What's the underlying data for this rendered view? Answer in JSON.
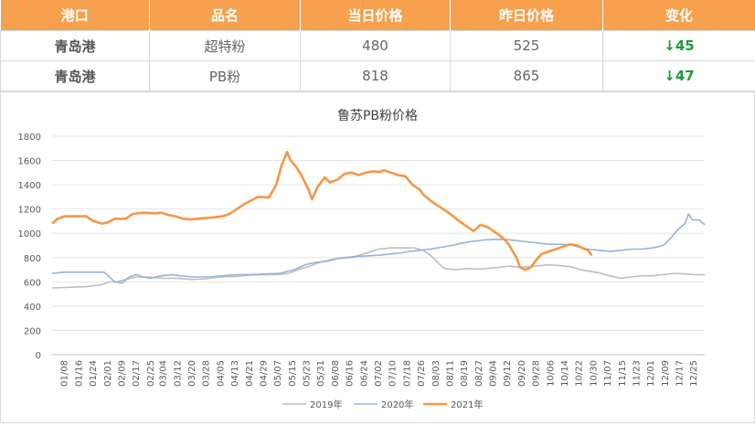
{
  "table": {
    "headers": [
      "港口",
      "品名",
      "当日价格",
      "昨日价格",
      "变化"
    ],
    "rows": [
      {
        "port": "青岛港",
        "product": "超特粉",
        "today": "480",
        "yesterday": "525",
        "change": "↓45"
      },
      {
        "port": "青岛港",
        "product": "PB粉",
        "today": "818",
        "yesterday": "865",
        "change": "↓47"
      }
    ]
  },
  "chart_data": {
    "type": "line",
    "title": "鲁苏PB粉价格",
    "ylim": [
      0,
      1800
    ],
    "yticks": [
      0,
      200,
      400,
      600,
      800,
      1000,
      1200,
      1400,
      1600,
      1800
    ],
    "xlim": [
      1,
      365
    ],
    "xticks": [
      {
        "label": "01/08",
        "x": 8
      },
      {
        "label": "01/16",
        "x": 16
      },
      {
        "label": "01/24",
        "x": 24
      },
      {
        "label": "02/01",
        "x": 32
      },
      {
        "label": "02/09",
        "x": 40
      },
      {
        "label": "02/17",
        "x": 48
      },
      {
        "label": "02/25",
        "x": 56
      },
      {
        "label": "03/04",
        "x": 63
      },
      {
        "label": "03/12",
        "x": 71
      },
      {
        "label": "03/20",
        "x": 79
      },
      {
        "label": "03/28",
        "x": 87
      },
      {
        "label": "04/05",
        "x": 95
      },
      {
        "label": "04/13",
        "x": 103
      },
      {
        "label": "04/21",
        "x": 111
      },
      {
        "label": "04/29",
        "x": 119
      },
      {
        "label": "05/07",
        "x": 127
      },
      {
        "label": "05/15",
        "x": 135
      },
      {
        "label": "05/23",
        "x": 143
      },
      {
        "label": "05/31",
        "x": 151
      },
      {
        "label": "06/08",
        "x": 159
      },
      {
        "label": "06/16",
        "x": 167
      },
      {
        "label": "06/24",
        "x": 175
      },
      {
        "label": "07/02",
        "x": 183
      },
      {
        "label": "07/10",
        "x": 191
      },
      {
        "label": "07/18",
        "x": 199
      },
      {
        "label": "07/26",
        "x": 207
      },
      {
        "label": "08/03",
        "x": 215
      },
      {
        "label": "08/11",
        "x": 223
      },
      {
        "label": "08/19",
        "x": 231
      },
      {
        "label": "08/27",
        "x": 239
      },
      {
        "label": "09/04",
        "x": 247
      },
      {
        "label": "09/12",
        "x": 255
      },
      {
        "label": "09/20",
        "x": 263
      },
      {
        "label": "09/28",
        "x": 271
      },
      {
        "label": "10/06",
        "x": 279
      },
      {
        "label": "10/14",
        "x": 287
      },
      {
        "label": "10/22",
        "x": 295
      },
      {
        "label": "10/30",
        "x": 303
      },
      {
        "label": "11/07",
        "x": 311
      },
      {
        "label": "11/15",
        "x": 319
      },
      {
        "label": "11/23",
        "x": 327
      },
      {
        "label": "12/01",
        "x": 335
      },
      {
        "label": "12/09",
        "x": 343
      },
      {
        "label": "12/17",
        "x": 351
      },
      {
        "label": "12/25",
        "x": 359
      }
    ],
    "series": [
      {
        "name": "2019年",
        "color": "#bfbfbf",
        "points": [
          [
            1,
            550
          ],
          [
            10,
            555
          ],
          [
            20,
            560
          ],
          [
            28,
            575
          ],
          [
            33,
            600
          ],
          [
            37,
            600
          ],
          [
            42,
            620
          ],
          [
            48,
            640
          ],
          [
            55,
            640
          ],
          [
            63,
            630
          ],
          [
            71,
            630
          ],
          [
            79,
            620
          ],
          [
            87,
            625
          ],
          [
            95,
            640
          ],
          [
            103,
            645
          ],
          [
            111,
            655
          ],
          [
            119,
            660
          ],
          [
            127,
            660
          ],
          [
            133,
            670
          ],
          [
            140,
            710
          ],
          [
            144,
            725
          ],
          [
            150,
            760
          ],
          [
            157,
            785
          ],
          [
            163,
            800
          ],
          [
            170,
            810
          ],
          [
            177,
            840
          ],
          [
            183,
            870
          ],
          [
            190,
            880
          ],
          [
            197,
            880
          ],
          [
            203,
            880
          ],
          [
            208,
            860
          ],
          [
            212,
            820
          ],
          [
            216,
            760
          ],
          [
            220,
            710
          ],
          [
            226,
            700
          ],
          [
            232,
            710
          ],
          [
            238,
            705
          ],
          [
            244,
            710
          ],
          [
            250,
            720
          ],
          [
            256,
            730
          ],
          [
            262,
            720
          ],
          [
            270,
            730
          ],
          [
            278,
            740
          ],
          [
            284,
            735
          ],
          [
            290,
            725
          ],
          [
            296,
            700
          ],
          [
            300,
            690
          ],
          [
            306,
            675
          ],
          [
            312,
            650
          ],
          [
            318,
            630
          ],
          [
            324,
            640
          ],
          [
            330,
            650
          ],
          [
            336,
            650
          ],
          [
            342,
            660
          ],
          [
            348,
            670
          ],
          [
            354,
            665
          ],
          [
            360,
            660
          ],
          [
            365,
            660
          ]
        ]
      },
      {
        "name": "2020年",
        "color": "#95b3d7",
        "points": [
          [
            1,
            670
          ],
          [
            8,
            680
          ],
          [
            18,
            680
          ],
          [
            30,
            680
          ],
          [
            36,
            600
          ],
          [
            40,
            590
          ],
          [
            44,
            640
          ],
          [
            48,
            660
          ],
          [
            52,
            640
          ],
          [
            56,
            630
          ],
          [
            62,
            650
          ],
          [
            68,
            660
          ],
          [
            72,
            650
          ],
          [
            80,
            640
          ],
          [
            88,
            640
          ],
          [
            96,
            650
          ],
          [
            104,
            660
          ],
          [
            112,
            660
          ],
          [
            120,
            665
          ],
          [
            128,
            670
          ],
          [
            136,
            700
          ],
          [
            142,
            740
          ],
          [
            148,
            760
          ],
          [
            154,
            770
          ],
          [
            160,
            790
          ],
          [
            166,
            800
          ],
          [
            172,
            810
          ],
          [
            178,
            815
          ],
          [
            184,
            820
          ],
          [
            190,
            830
          ],
          [
            196,
            840
          ],
          [
            200,
            850
          ],
          [
            206,
            860
          ],
          [
            212,
            870
          ],
          [
            218,
            885
          ],
          [
            224,
            900
          ],
          [
            230,
            920
          ],
          [
            236,
            935
          ],
          [
            242,
            945
          ],
          [
            248,
            950
          ],
          [
            254,
            950
          ],
          [
            260,
            940
          ],
          [
            266,
            930
          ],
          [
            272,
            920
          ],
          [
            278,
            910
          ],
          [
            284,
            910
          ],
          [
            290,
            905
          ],
          [
            294,
            890
          ],
          [
            300,
            870
          ],
          [
            306,
            860
          ],
          [
            312,
            850
          ],
          [
            318,
            860
          ],
          [
            324,
            870
          ],
          [
            330,
            870
          ],
          [
            336,
            880
          ],
          [
            342,
            900
          ],
          [
            346,
            960
          ],
          [
            350,
            1030
          ],
          [
            354,
            1080
          ],
          [
            356,
            1160
          ],
          [
            358,
            1110
          ],
          [
            362,
            1110
          ],
          [
            365,
            1070
          ]
        ]
      },
      {
        "name": "2021年",
        "color": "#f79646",
        "points": [
          [
            1,
            1080
          ],
          [
            4,
            1120
          ],
          [
            8,
            1140
          ],
          [
            14,
            1140
          ],
          [
            20,
            1140
          ],
          [
            24,
            1100
          ],
          [
            29,
            1080
          ],
          [
            32,
            1090
          ],
          [
            36,
            1120
          ],
          [
            42,
            1120
          ],
          [
            46,
            1160
          ],
          [
            52,
            1170
          ],
          [
            58,
            1165
          ],
          [
            62,
            1170
          ],
          [
            66,
            1150
          ],
          [
            70,
            1140
          ],
          [
            74,
            1120
          ],
          [
            78,
            1115
          ],
          [
            82,
            1120
          ],
          [
            86,
            1125
          ],
          [
            90,
            1130
          ],
          [
            96,
            1140
          ],
          [
            100,
            1160
          ],
          [
            104,
            1200
          ],
          [
            108,
            1240
          ],
          [
            112,
            1270
          ],
          [
            116,
            1300
          ],
          [
            122,
            1295
          ],
          [
            126,
            1400
          ],
          [
            129,
            1560
          ],
          [
            132,
            1670
          ],
          [
            134,
            1600
          ],
          [
            137,
            1550
          ],
          [
            140,
            1480
          ],
          [
            142,
            1420
          ],
          [
            144,
            1360
          ],
          [
            146,
            1280
          ],
          [
            149,
            1380
          ],
          [
            153,
            1460
          ],
          [
            156,
            1420
          ],
          [
            160,
            1440
          ],
          [
            164,
            1490
          ],
          [
            168,
            1500
          ],
          [
            172,
            1480
          ],
          [
            176,
            1500
          ],
          [
            180,
            1510
          ],
          [
            184,
            1505
          ],
          [
            186,
            1520
          ],
          [
            190,
            1500
          ],
          [
            194,
            1480
          ],
          [
            198,
            1470
          ],
          [
            202,
            1400
          ],
          [
            206,
            1360
          ],
          [
            208,
            1320
          ],
          [
            212,
            1270
          ],
          [
            216,
            1230
          ],
          [
            220,
            1190
          ],
          [
            224,
            1150
          ],
          [
            228,
            1100
          ],
          [
            232,
            1060
          ],
          [
            236,
            1020
          ],
          [
            240,
            1070
          ],
          [
            244,
            1050
          ],
          [
            248,
            1010
          ],
          [
            250,
            990
          ],
          [
            254,
            940
          ],
          [
            256,
            900
          ],
          [
            258,
            850
          ],
          [
            260,
            800
          ],
          [
            262,
            720
          ],
          [
            265,
            700
          ],
          [
            268,
            720
          ],
          [
            271,
            780
          ],
          [
            274,
            830
          ],
          [
            278,
            850
          ],
          [
            282,
            870
          ],
          [
            286,
            890
          ],
          [
            290,
            910
          ],
          [
            294,
            900
          ],
          [
            298,
            870
          ],
          [
            300,
            860
          ],
          [
            302,
            818
          ]
        ]
      }
    ],
    "legend": "bottom"
  }
}
